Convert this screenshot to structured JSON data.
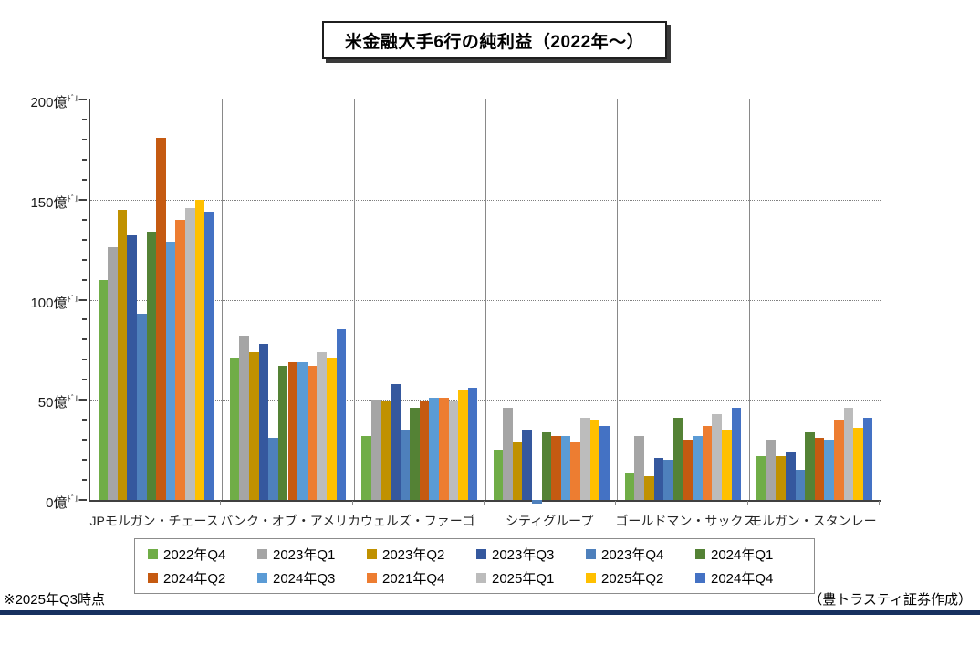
{
  "title": "米金融大手6行の純利益（2022年～）",
  "footnote_left": "※2025年Q3時点",
  "footnote_right": "（豊トラスティ証券作成）",
  "accent_rule_color": "#17305F",
  "chart_data": {
    "type": "bar",
    "title": "米金融大手6行の純利益（2022年～）",
    "unit": "億ドル",
    "legend_position": "bottom",
    "gridlines": "horizontal-dotted",
    "y_axis": {
      "min": 0,
      "max": 200,
      "major_step": 50,
      "minor_step": 10,
      "unit_main": "億",
      "unit_small": "ﾄﾞﾙ",
      "tick_labels": [
        "0億ﾄﾞﾙ",
        "50億ﾄﾞﾙ",
        "100億ﾄﾞﾙ",
        "150億ﾄﾞﾙ",
        "200億ﾄﾞﾙ"
      ]
    },
    "categories": [
      "JPモルガン・チェース",
      "バンク・オブ・アメリカ",
      "ウェルズ・ファーゴ",
      "シティグループ",
      "ゴールドマン・サックス",
      "モルガン・スタンレー"
    ],
    "series": [
      {
        "name": "2022年Q4",
        "color": "#70AD47",
        "values": [
          110,
          71,
          32,
          25,
          13,
          22
        ]
      },
      {
        "name": "2023年Q1",
        "color": "#A5A5A5",
        "values": [
          126,
          82,
          50,
          46,
          32,
          30
        ]
      },
      {
        "name": "2023年Q2",
        "color": "#C09100",
        "values": [
          145,
          74,
          49,
          29,
          12,
          22
        ]
      },
      {
        "name": "2023年Q3",
        "color": "#35589E",
        "values": [
          132,
          78,
          58,
          35,
          21,
          24
        ]
      },
      {
        "name": "2023年Q4",
        "color": "#4E80BC",
        "values": [
          93,
          31,
          35,
          -2,
          20,
          15
        ]
      },
      {
        "name": "2024年Q1",
        "color": "#548235",
        "values": [
          134,
          67,
          46,
          34,
          41,
          34
        ]
      },
      {
        "name": "2024年Q2",
        "color": "#C55A11",
        "values": [
          181,
          69,
          49,
          32,
          30,
          31
        ]
      },
      {
        "name": "2024年Q3",
        "color": "#5B9BD5",
        "values": [
          129,
          69,
          51,
          32,
          32,
          30
        ]
      },
      {
        "name": "2021年Q4",
        "color": "#ED7D31",
        "values": [
          140,
          67,
          51,
          29,
          37,
          40
        ]
      },
      {
        "name": "2025年Q1",
        "color": "#BCBCBC",
        "values": [
          146,
          74,
          49,
          41,
          43,
          46
        ]
      },
      {
        "name": "2025年Q2",
        "color": "#FFC000",
        "values": [
          150,
          71,
          55,
          40,
          35,
          36
        ]
      },
      {
        "name": "2024年Q4",
        "color": "#4472C4",
        "values": [
          144,
          85,
          56,
          37,
          46,
          41
        ]
      }
    ]
  }
}
